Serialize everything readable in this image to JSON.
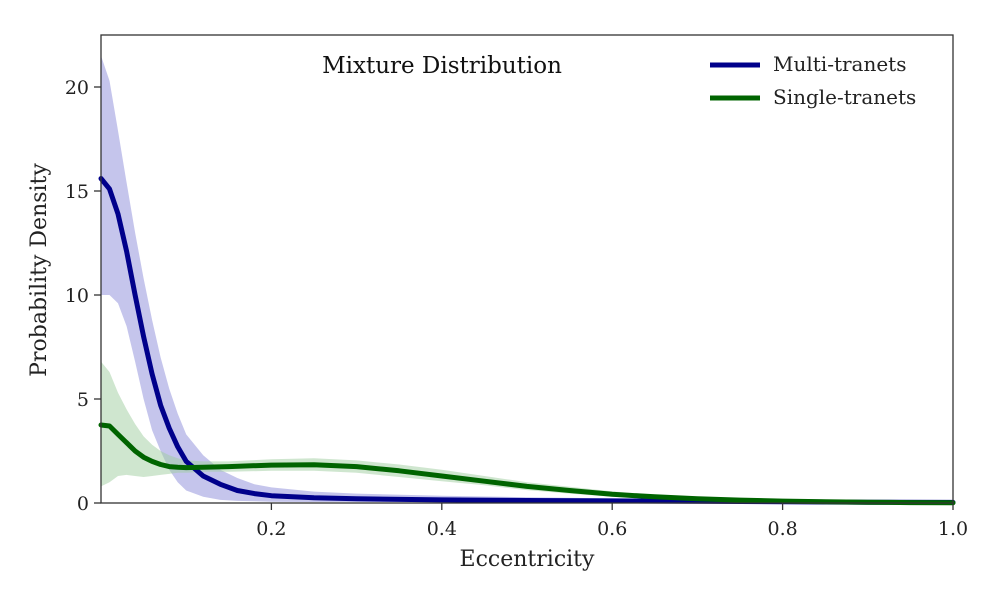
{
  "chart_data": {
    "type": "line",
    "title": "Mixture Distribution",
    "xlabel": "Eccentricity",
    "ylabel": "Probability Density",
    "xlim": [
      0.0,
      1.0
    ],
    "ylim": [
      0,
      22.5
    ],
    "x_ticks": [
      0.2,
      0.4,
      0.6,
      0.8,
      1.0
    ],
    "x_tick_labels": [
      "0.2",
      "0.4",
      "0.6",
      "0.8",
      "1.0"
    ],
    "y_ticks": [
      0,
      5,
      10,
      15,
      20
    ],
    "y_tick_labels": [
      "0",
      "5",
      "10",
      "15",
      "20"
    ],
    "grid": false,
    "legend_position": "top-right",
    "series": [
      {
        "name": "Multi-tranets",
        "color": "#00008b",
        "band_color": "#8c8cd9",
        "x": [
          0.0,
          0.01,
          0.02,
          0.03,
          0.04,
          0.05,
          0.06,
          0.07,
          0.08,
          0.09,
          0.1,
          0.12,
          0.14,
          0.16,
          0.18,
          0.2,
          0.25,
          0.3,
          0.4,
          0.5,
          0.6,
          0.7,
          0.8,
          0.9,
          1.0
        ],
        "y": [
          15.6,
          15.1,
          13.9,
          12.1,
          10.0,
          8.0,
          6.2,
          4.7,
          3.6,
          2.7,
          2.0,
          1.3,
          0.9,
          0.6,
          0.45,
          0.35,
          0.25,
          0.2,
          0.15,
          0.12,
          0.1,
          0.08,
          0.06,
          0.04,
          0.03
        ],
        "lower": [
          10.0,
          10.0,
          9.6,
          8.5,
          6.8,
          5.0,
          3.5,
          2.5,
          1.6,
          1.0,
          0.6,
          0.3,
          0.15,
          0.1,
          0.08,
          0.06,
          0.05,
          0.05,
          0.04,
          0.03,
          0.03,
          0.02,
          0.02,
          0.01,
          0.01
        ],
        "upper": [
          21.5,
          20.3,
          17.9,
          15.4,
          13.0,
          10.8,
          8.8,
          7.0,
          5.5,
          4.3,
          3.3,
          2.3,
          1.6,
          1.2,
          0.9,
          0.75,
          0.55,
          0.45,
          0.35,
          0.28,
          0.22,
          0.17,
          0.13,
          0.1,
          0.08
        ]
      },
      {
        "name": "Single-tranets",
        "color": "#006400",
        "band_color": "#9fce9f",
        "x": [
          0.0,
          0.01,
          0.02,
          0.03,
          0.04,
          0.05,
          0.06,
          0.07,
          0.08,
          0.09,
          0.1,
          0.12,
          0.15,
          0.2,
          0.25,
          0.3,
          0.35,
          0.4,
          0.45,
          0.5,
          0.55,
          0.6,
          0.65,
          0.7,
          0.75,
          0.8,
          0.85,
          0.9,
          0.95,
          1.0
        ],
        "y": [
          3.75,
          3.7,
          3.3,
          2.9,
          2.5,
          2.2,
          2.0,
          1.85,
          1.75,
          1.72,
          1.7,
          1.72,
          1.75,
          1.82,
          1.84,
          1.75,
          1.55,
          1.3,
          1.05,
          0.8,
          0.6,
          0.42,
          0.3,
          0.2,
          0.14,
          0.09,
          0.06,
          0.04,
          0.02,
          0.01
        ],
        "lower": [
          0.8,
          1.0,
          1.3,
          1.35,
          1.3,
          1.25,
          1.3,
          1.35,
          1.4,
          1.45,
          1.45,
          1.5,
          1.5,
          1.55,
          1.55,
          1.45,
          1.25,
          1.05,
          0.85,
          0.62,
          0.45,
          0.3,
          0.2,
          0.12,
          0.08,
          0.05,
          0.03,
          0.02,
          0.01,
          0.0
        ],
        "upper": [
          6.8,
          6.3,
          5.3,
          4.5,
          3.8,
          3.2,
          2.8,
          2.5,
          2.3,
          2.15,
          2.05,
          2.0,
          2.0,
          2.1,
          2.15,
          2.05,
          1.85,
          1.6,
          1.3,
          1.0,
          0.78,
          0.56,
          0.4,
          0.28,
          0.2,
          0.14,
          0.09,
          0.06,
          0.04,
          0.02
        ]
      }
    ]
  }
}
